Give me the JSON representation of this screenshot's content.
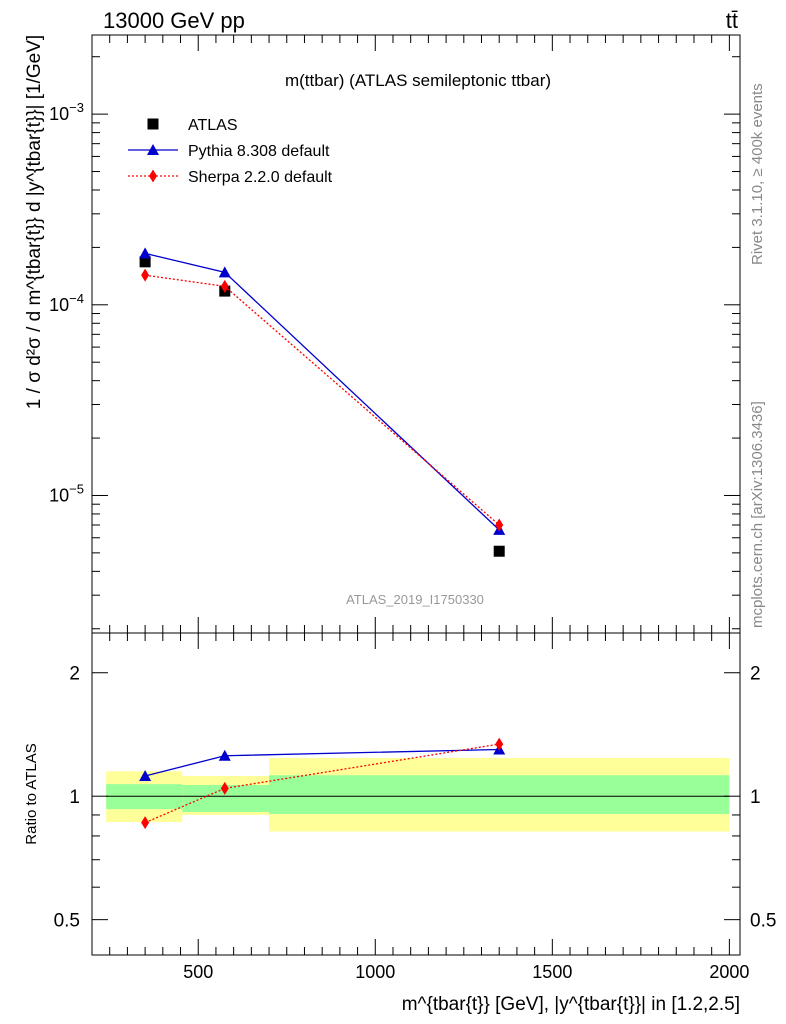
{
  "header": {
    "energy_label": "13000 GeV pp",
    "process_label": "tt̄"
  },
  "side_labels": {
    "rivet": "Rivet 3.1.10, ≥ 400k events",
    "mcplots": "mcplots.cern.ch [arXiv:1306.3436]"
  },
  "colors": {
    "atlas": "#000000",
    "pythia": "#0000cc",
    "sherpa": "#ff0000",
    "band_inner": "#99ff99",
    "band_outer": "#ffff99"
  },
  "chart_data": [
    {
      "type": "scatter",
      "title": "m(ttbar) (ATLAS semileptonic ttbar)",
      "ylabel": "1 / σ d²σ / d m^{tbar{t}} d |y^{tbar{t}}| [1/GeV]",
      "yscale": "log",
      "xlim": [
        200,
        2030
      ],
      "ylim": [
        1.9e-06,
        0.0026
      ],
      "y_ticks": [
        {
          "value": 1e-05,
          "label": "10^{-5}",
          "base": "10",
          "exp": "−5"
        },
        {
          "value": 0.0001,
          "label": "10^{-4}",
          "base": "10",
          "exp": "−4"
        },
        {
          "value": 0.001,
          "label": "10^{-3}",
          "base": "10",
          "exp": "−3"
        }
      ],
      "watermark": "ATLAS_2019_I1750330",
      "legend": {
        "placement": "top-left"
      },
      "series": [
        {
          "name": "ATLAS",
          "marker": "square",
          "color": "#000000",
          "x": [
            350,
            575,
            1350
          ],
          "y": [
            0.000168,
            0.000118,
            5.1e-06
          ]
        },
        {
          "name": "Pythia 8.308 default",
          "marker": "triangle",
          "line": "solid",
          "color": "#0000cc",
          "x": [
            350,
            575,
            1350
          ],
          "y": [
            0.000186,
            0.000148,
            6.6e-06
          ]
        },
        {
          "name": "Sherpa 2.2.0 default",
          "marker": "diamond",
          "line": "dotted",
          "color": "#ff0000",
          "x": [
            350,
            575,
            1350
          ],
          "y": [
            0.000143,
            0.000125,
            7e-06
          ]
        }
      ]
    },
    {
      "type": "line",
      "ylabel": "Ratio to ATLAS",
      "xlabel": "m^{tbar{t}} [GeV], |y^{tbar{t}}| in [1.2,2.5]",
      "yscale": "log",
      "xlim": [
        200,
        2030
      ],
      "ylim": [
        0.41,
        2.5
      ],
      "x_ticks": [
        500,
        1000,
        1500,
        2000
      ],
      "y_ticks": [
        0.5,
        1,
        2
      ],
      "reference_line": 1,
      "bands": [
        {
          "x0": 240,
          "x1": 455,
          "inner": [
            0.93,
            1.07
          ],
          "outer": [
            0.865,
            1.15
          ]
        },
        {
          "x0": 455,
          "x1": 700,
          "inner": [
            0.915,
            1.065
          ],
          "outer": [
            0.9,
            1.12
          ]
        },
        {
          "x0": 700,
          "x1": 2000,
          "inner": [
            0.905,
            1.125
          ],
          "outer": [
            0.82,
            1.24
          ]
        }
      ],
      "series": [
        {
          "name": "Pythia 8.308 default",
          "marker": "triangle",
          "line": "solid",
          "color": "#0000cc",
          "x": [
            350,
            575,
            1350
          ],
          "y": [
            1.12,
            1.255,
            1.3
          ]
        },
        {
          "name": "Sherpa 2.2.0 default",
          "marker": "diamond",
          "line": "dotted",
          "color": "#ff0000",
          "x": [
            350,
            575,
            1350
          ],
          "y": [
            0.862,
            1.045,
            1.34
          ]
        }
      ]
    }
  ]
}
